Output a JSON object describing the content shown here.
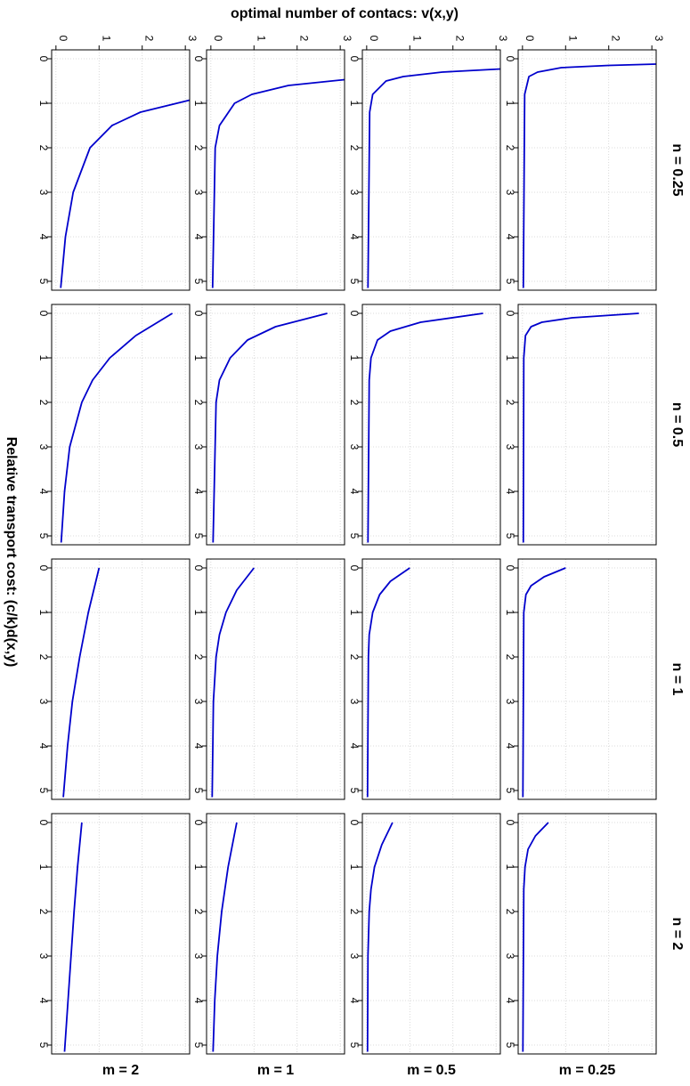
{
  "chart_data": {
    "type": "line",
    "title": "optimal number of contacs: v(x,y)",
    "ylabel": "Relative transport cost: (c/k)d(x,y)",
    "orientation": "rotated 90° clockwise (value axis across the top, transport cost axis running down)",
    "value_axis": {
      "label": "optimal number of contacs: v(x,y)",
      "range": [
        -0.1,
        3.1
      ],
      "ticks": [
        0,
        1,
        2,
        3
      ],
      "tick_labels": [
        "0",
        "1",
        "2",
        "3"
      ],
      "ticks_shown_on": "top row only"
    },
    "cost_axis": {
      "label": "Relative transport cost: (c/k)d(x,y)",
      "range": [
        -0.2,
        5.2
      ],
      "ticks": [
        0,
        1,
        2,
        3,
        4,
        5
      ],
      "tick_labels": [
        "0",
        "1",
        "2",
        "3",
        "4",
        "5"
      ],
      "ticks_shown_on": "every panel"
    },
    "grid": "dotted",
    "line_color": "#0000cc",
    "column_labels": [
      "m = 2",
      "m = 1",
      "m = 0.5",
      "m = 0.25"
    ],
    "row_labels": [
      "n = 0.25",
      "n = 0.5",
      "n = 1",
      "n = 2"
    ],
    "panels": [
      {
        "n": 0.25,
        "m": 2,
        "series": [
          {
            "cost": [
              0.93,
              1.2,
              1.5,
              2,
              3,
              4,
              5.15
            ],
            "value": [
              3.1,
              1.96,
              1.3,
              0.79,
              0.4,
              0.22,
              0.11
            ]
          }
        ]
      },
      {
        "n": 0.25,
        "m": 1,
        "series": [
          {
            "cost": [
              0.47,
              0.6,
              0.8,
              1,
              1.5,
              2,
              5.15
            ],
            "value": [
              3.1,
              1.8,
              0.95,
              0.55,
              0.2,
              0.1,
              0.04
            ]
          }
        ]
      },
      {
        "n": 0.25,
        "m": 0.5,
        "series": [
          {
            "cost": [
              0.23,
              0.3,
              0.4,
              0.5,
              0.8,
              1.2,
              5.15
            ],
            "value": [
              3.1,
              1.75,
              0.85,
              0.45,
              0.14,
              0.07,
              0.03
            ]
          }
        ]
      },
      {
        "n": 0.25,
        "m": 0.25,
        "series": [
          {
            "cost": [
              0.12,
              0.15,
              0.2,
              0.3,
              0.4,
              0.8,
              5.15
            ],
            "value": [
              3.1,
              2.0,
              0.9,
              0.35,
              0.15,
              0.05,
              0.02
            ]
          }
        ]
      },
      {
        "n": 0.5,
        "m": 2,
        "series": [
          {
            "cost": [
              0,
              0.5,
              1,
              1.5,
              2,
              3,
              4,
              5.15
            ],
            "value": [
              2.7,
              1.85,
              1.25,
              0.85,
              0.6,
              0.32,
              0.2,
              0.12
            ]
          }
        ]
      },
      {
        "n": 0.5,
        "m": 1,
        "series": [
          {
            "cost": [
              0,
              0.3,
              0.6,
              1,
              1.5,
              2,
              5.15
            ],
            "value": [
              2.7,
              1.5,
              0.85,
              0.45,
              0.2,
              0.12,
              0.05
            ]
          }
        ]
      },
      {
        "n": 0.5,
        "m": 0.5,
        "series": [
          {
            "cost": [
              0,
              0.2,
              0.4,
              0.6,
              1,
              1.5,
              5.15
            ],
            "value": [
              2.7,
              1.25,
              0.55,
              0.25,
              0.1,
              0.06,
              0.03
            ]
          }
        ]
      },
      {
        "n": 0.5,
        "m": 0.25,
        "series": [
          {
            "cost": [
              0,
              0.1,
              0.2,
              0.3,
              0.5,
              1,
              5.15
            ],
            "value": [
              2.7,
              1.15,
              0.45,
              0.2,
              0.07,
              0.03,
              0.02
            ]
          }
        ]
      },
      {
        "n": 1,
        "m": 2,
        "series": [
          {
            "cost": [
              0,
              1,
              2,
              3,
              4,
              5.15
            ],
            "value": [
              1.0,
              0.75,
              0.55,
              0.38,
              0.27,
              0.17
            ]
          }
        ]
      },
      {
        "n": 1,
        "m": 1,
        "series": [
          {
            "cost": [
              0,
              0.5,
              1,
              1.5,
              2,
              3,
              5.15
            ],
            "value": [
              1.0,
              0.6,
              0.35,
              0.2,
              0.12,
              0.06,
              0.03
            ]
          }
        ]
      },
      {
        "n": 1,
        "m": 0.5,
        "series": [
          {
            "cost": [
              0,
              0.3,
              0.6,
              1,
              1.5,
              2,
              5.15
            ],
            "value": [
              1.0,
              0.55,
              0.3,
              0.14,
              0.06,
              0.04,
              0.02
            ]
          }
        ]
      },
      {
        "n": 1,
        "m": 0.25,
        "series": [
          {
            "cost": [
              0,
              0.2,
              0.4,
              0.6,
              1,
              5.15
            ],
            "value": [
              1.0,
              0.5,
              0.2,
              0.08,
              0.03,
              0.01
            ]
          }
        ]
      },
      {
        "n": 2,
        "m": 2,
        "series": [
          {
            "cost": [
              0,
              1,
              2,
              3,
              4,
              5.15
            ],
            "value": [
              0.6,
              0.5,
              0.42,
              0.35,
              0.28,
              0.2
            ]
          }
        ]
      },
      {
        "n": 2,
        "m": 1,
        "series": [
          {
            "cost": [
              0,
              1,
              2,
              3,
              4,
              5.15
            ],
            "value": [
              0.6,
              0.4,
              0.25,
              0.15,
              0.09,
              0.05
            ]
          }
        ]
      },
      {
        "n": 2,
        "m": 0.5,
        "series": [
          {
            "cost": [
              0,
              0.5,
              1,
              1.5,
              2,
              3,
              5.15
            ],
            "value": [
              0.6,
              0.35,
              0.18,
              0.1,
              0.06,
              0.03,
              0.02
            ]
          }
        ]
      },
      {
        "n": 2,
        "m": 0.25,
        "series": [
          {
            "cost": [
              0,
              0.3,
              0.6,
              1,
              1.5,
              5.15
            ],
            "value": [
              0.6,
              0.3,
              0.13,
              0.06,
              0.03,
              0.01
            ]
          }
        ]
      }
    ]
  }
}
